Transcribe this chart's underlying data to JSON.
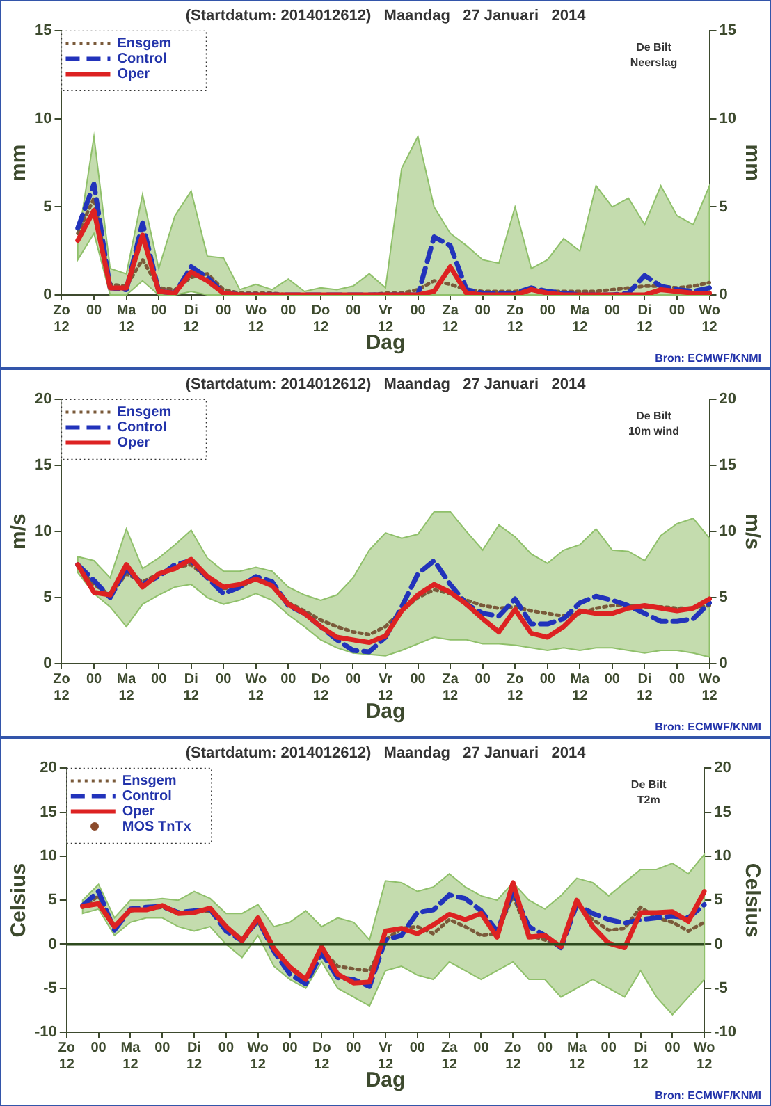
{
  "chart_data": [
    {
      "type": "line",
      "title": "(Startdatum: 2014012612)   Maandag   27 Januari   2014",
      "xlabel": "Dag",
      "ylabel": "mm",
      "y2label": "mm",
      "annotations": [
        "De Bilt",
        "Neerslag",
        "Bron: ECMWF/KNMI"
      ],
      "categories": [
        "Zo\n12",
        null,
        "00",
        null,
        "Ma\n12",
        null,
        "00",
        null,
        "Di\n12",
        null,
        "00",
        null,
        "Wo\n12",
        null,
        "00",
        null,
        "Do\n12",
        null,
        "00",
        null,
        "Vr\n12",
        null,
        "00",
        null,
        "Za\n12",
        null,
        "00",
        null,
        "Zo\n12",
        null,
        "00",
        null,
        "Ma\n12",
        null,
        "00",
        null,
        "Di\n12",
        null,
        "00",
        null,
        "Wo\n12"
      ],
      "ylim": [
        0,
        15
      ],
      "yticks": [
        0,
        5,
        10,
        15
      ],
      "y2lim": [
        0,
        15
      ],
      "y2ticks": [
        0,
        5,
        10,
        15
      ],
      "legend": "top left",
      "series": [
        {
          "name": "Ensgem",
          "color": "#7a5a3a",
          "line_style": "dotted",
          "values": [
            null,
            3.5,
            5.5,
            0.6,
            0.5,
            2.0,
            0.4,
            0.3,
            1.0,
            1.2,
            0.3,
            0.1,
            0.1,
            0.1,
            0,
            0,
            0,
            0,
            0,
            0,
            0.1,
            0.1,
            0.3,
            0.8,
            0.6,
            0.3,
            0.2,
            0.2,
            0.2,
            0.3,
            0.2,
            0.2,
            0.2,
            0.2,
            0.3,
            0.4,
            0.5,
            0.5,
            0.4,
            0.5,
            0.7
          ],
          "lower": [
            null,
            2.0,
            3.5,
            0,
            0,
            0.8,
            0,
            0,
            0.2,
            0,
            0,
            0,
            0,
            0,
            0,
            0,
            0,
            0,
            0,
            0,
            0,
            0,
            0,
            0,
            0,
            0,
            0,
            0,
            0,
            0,
            0,
            0,
            0,
            0,
            0,
            0,
            0,
            0,
            0,
            0,
            0
          ],
          "upper": [
            null,
            3,
            9,
            1.5,
            1.2,
            5.7,
            1.5,
            4.5,
            5.9,
            2.2,
            2.1,
            0.3,
            0.6,
            0.3,
            0.9,
            0.2,
            0.4,
            0.3,
            0.5,
            1.2,
            0.4,
            7.2,
            9.0,
            5,
            3.5,
            2.8,
            2,
            1.8,
            5,
            1.5,
            2,
            3.2,
            2.5,
            6.2,
            5.0,
            5.5,
            4.0,
            6.2,
            4.5,
            4.0,
            6.2
          ]
        },
        {
          "name": "Control",
          "color": "#2233bb",
          "line_style": "dashed",
          "values": [
            null,
            3.8,
            6.3,
            0.4,
            0.3,
            4.1,
            0.2,
            0.1,
            1.6,
            1.0,
            0.1,
            0,
            0,
            0,
            0,
            0,
            0,
            0,
            0,
            0,
            0,
            0,
            0,
            3.3,
            2.8,
            0.3,
            0.1,
            0.1,
            0.1,
            0.4,
            0.2,
            0.1,
            0,
            0,
            0,
            0.1,
            1.1,
            0.5,
            0.3,
            0.2,
            0.4
          ]
        },
        {
          "name": "Oper",
          "color": "#dd2222",
          "line_style": "solid",
          "values": [
            null,
            3.1,
            4.8,
            0.4,
            0.4,
            3.4,
            0.2,
            0.1,
            1.3,
            0.8,
            0.1,
            0,
            0,
            0,
            0,
            0,
            0,
            0,
            0,
            0,
            0,
            0,
            0,
            0.2,
            1.6,
            0.1,
            0,
            0,
            0,
            0.3,
            0.1,
            0,
            0,
            0,
            0,
            0,
            0,
            0.3,
            0.2,
            0.1,
            0.1
          ]
        }
      ]
    },
    {
      "type": "line",
      "title": "(Startdatum: 2014012612)   Maandag   27 Januari   2014",
      "xlabel": "Dag",
      "ylabel": "m/s",
      "y2label": "m/s",
      "annotations": [
        "De Bilt",
        "10m wind",
        "Bron: ECMWF/KNMI"
      ],
      "categories": [
        "Zo\n12",
        null,
        "00",
        null,
        "Ma\n12",
        null,
        "00",
        null,
        "Di\n12",
        null,
        "00",
        null,
        "Wo\n12",
        null,
        "00",
        null,
        "Do\n12",
        null,
        "00",
        null,
        "Vr\n12",
        null,
        "00",
        null,
        "Za\n12",
        null,
        "00",
        null,
        "Zo\n12",
        null,
        "00",
        null,
        "Ma\n12",
        null,
        "00",
        null,
        "Di\n12",
        null,
        "00",
        null,
        "Wo\n12"
      ],
      "ylim": [
        0,
        20
      ],
      "yticks": [
        0,
        5,
        10,
        15,
        20
      ],
      "y2lim": [
        0,
        20
      ],
      "y2ticks": [
        0,
        5,
        10,
        15,
        20
      ],
      "legend": "top left",
      "series": [
        {
          "name": "Ensgem",
          "color": "#7a5a3a",
          "line_style": "dotted",
          "values": [
            null,
            7.4,
            6.0,
            5.2,
            6.8,
            6.2,
            6.8,
            7.3,
            7.5,
            6.5,
            5.7,
            5.8,
            6.4,
            6.0,
            4.6,
            4.0,
            3.3,
            2.8,
            2.4,
            2.2,
            2.8,
            4.0,
            5.0,
            5.6,
            5.3,
            4.8,
            4.4,
            4.2,
            4.3,
            4.0,
            3.8,
            3.6,
            3.8,
            4.2,
            4.4,
            4.4,
            4.3,
            4.3,
            4.2,
            4.2,
            4.4
          ],
          "lower": [
            null,
            6.9,
            5.3,
            4.3,
            2.8,
            4.5,
            5.2,
            5.8,
            6.0,
            5.0,
            4.5,
            4.8,
            5.3,
            4.8,
            3.7,
            2.8,
            1.8,
            1.2,
            0.8,
            0.7,
            0.6,
            1.0,
            1.5,
            2.0,
            1.8,
            1.8,
            1.5,
            1.5,
            1.4,
            1.2,
            1.0,
            1.2,
            1.0,
            1.2,
            1.2,
            1.0,
            0.8,
            1.0,
            1.0,
            0.8,
            0.5
          ],
          "upper": [
            null,
            8.1,
            7.8,
            6.5,
            10.2,
            7.2,
            8.0,
            9.0,
            10.1,
            8.0,
            7.0,
            7.0,
            7.3,
            7.0,
            5.8,
            5.2,
            4.8,
            5.2,
            6.5,
            8.6,
            9.9,
            9.5,
            9.8,
            11.5,
            11.5,
            10.0,
            8.6,
            10.5,
            9.6,
            8.3,
            7.6,
            8.6,
            9.0,
            10.2,
            8.6,
            8.5,
            7.8,
            9.7,
            10.6,
            11.0,
            9.5
          ]
        },
        {
          "name": "Control",
          "color": "#2233bb",
          "line_style": "dashed",
          "values": [
            null,
            7.5,
            6.3,
            5.0,
            7.2,
            6.0,
            6.6,
            7.5,
            7.8,
            6.5,
            5.3,
            5.8,
            6.6,
            6.2,
            4.4,
            3.8,
            2.8,
            1.8,
            1.0,
            0.9,
            2.0,
            4.3,
            6.8,
            7.8,
            6.0,
            4.5,
            3.8,
            3.6,
            4.9,
            3.0,
            3.0,
            3.4,
            4.6,
            5.1,
            4.8,
            4.4,
            3.8,
            3.2,
            3.2,
            3.4,
            4.6
          ]
        },
        {
          "name": "Oper",
          "color": "#dd2222",
          "line_style": "solid",
          "values": [
            null,
            7.5,
            5.4,
            5.2,
            7.5,
            5.8,
            6.8,
            7.2,
            7.9,
            6.6,
            5.8,
            6.0,
            6.4,
            5.9,
            4.5,
            3.8,
            2.8,
            2.0,
            1.8,
            1.6,
            2.1,
            4.0,
            5.2,
            6.0,
            5.4,
            4.5,
            3.4,
            2.4,
            4.1,
            2.3,
            2.0,
            2.8,
            4.0,
            3.8,
            3.8,
            4.2,
            4.4,
            4.2,
            4.0,
            4.2,
            4.9
          ]
        }
      ]
    },
    {
      "type": "line",
      "title": "(Startdatum: 2014012612)   Maandag   27 Januari   2014",
      "xlabel": "Dag",
      "ylabel": "Celsius",
      "y2label": "Celsius",
      "annotations": [
        "MOS TnTx",
        "De Bilt",
        "T2m",
        "Bron: ECMWF/KNMI"
      ],
      "categories": [
        "Zo\n12",
        null,
        "00",
        null,
        "Ma\n12",
        null,
        "00",
        null,
        "Di\n12",
        null,
        "00",
        null,
        "Wo\n12",
        null,
        "00",
        null,
        "Do\n12",
        null,
        "00",
        null,
        "Vr\n12",
        null,
        "00",
        null,
        "Za\n12",
        null,
        "00",
        null,
        "Zo\n12",
        null,
        "00",
        null,
        "Ma\n12",
        null,
        "00",
        null,
        "Di\n12",
        null,
        "00",
        null,
        "Wo\n12"
      ],
      "ylim": [
        -10,
        20
      ],
      "yticks": [
        -10,
        -5,
        0,
        5,
        10,
        15,
        20
      ],
      "y2lim": [
        -10,
        20
      ],
      "y2ticks": [
        -10,
        -5,
        0,
        5,
        10,
        15,
        20
      ],
      "legend": "top left",
      "ref_lines": [
        {
          "axis": "y",
          "value": 0,
          "color": "#2e4a1e"
        }
      ],
      "series": [
        {
          "name": "Ensgem",
          "color": "#7a5a3a",
          "line_style": "dotted",
          "values": [
            null,
            4.2,
            5.5,
            2.0,
            3.8,
            4.0,
            4.2,
            3.6,
            3.8,
            3.8,
            2.0,
            0.6,
            2.5,
            -0.6,
            -2.8,
            -4.0,
            -0.6,
            -2.5,
            -2.8,
            -3.0,
            0.5,
            1.8,
            2.0,
            1.2,
            2.8,
            2.0,
            1.0,
            1.2,
            5.5,
            1.0,
            0.5,
            -0.3,
            4.5,
            2.8,
            1.6,
            1.8,
            4.2,
            3.0,
            2.5,
            1.5,
            2.5
          ],
          "lower": [
            null,
            3.5,
            4.0,
            1.0,
            2.5,
            3.0,
            3.0,
            2.0,
            1.5,
            2.0,
            0.0,
            -1.5,
            1.0,
            -2.5,
            -4.0,
            -5.0,
            -2.0,
            -5.0,
            -6.0,
            -7.0,
            -3.0,
            -2.5,
            -3.5,
            -4.0,
            -2.0,
            -3.0,
            -4.0,
            -3.0,
            -2.0,
            -4.0,
            -4.0,
            -6.0,
            -5.0,
            -4.0,
            -5.0,
            -6.0,
            -3.0,
            -6.0,
            -8.0,
            -6.0,
            -4.0
          ],
          "upper": [
            null,
            5.0,
            6.8,
            3.0,
            5.0,
            5.0,
            5.2,
            5.0,
            6.0,
            5.2,
            3.5,
            3.5,
            4.5,
            2.0,
            2.5,
            3.8,
            2.0,
            3.0,
            2.5,
            0.5,
            7.2,
            7.0,
            6.0,
            6.5,
            8.0,
            6.5,
            5.5,
            5.0,
            7.0,
            5.0,
            4.0,
            5.5,
            7.5,
            7.0,
            5.5,
            7.0,
            8.5,
            8.5,
            9.2,
            8.0,
            10.2
          ]
        },
        {
          "name": "Control",
          "color": "#2233bb",
          "line_style": "dashed",
          "values": [
            null,
            4.4,
            6.0,
            1.6,
            4.0,
            4.2,
            4.3,
            3.6,
            3.8,
            4.0,
            1.5,
            0.4,
            2.8,
            -0.8,
            -3.4,
            -4.5,
            -1.0,
            -3.8,
            -4.0,
            -4.8,
            0.5,
            1.0,
            3.6,
            3.9,
            5.6,
            5.2,
            3.8,
            1.5,
            6.0,
            2.0,
            1.0,
            -0.4,
            4.5,
            3.5,
            2.8,
            2.4,
            2.8,
            3.0,
            3.2,
            3.0,
            4.5
          ]
        },
        {
          "name": "Oper",
          "color": "#dd2222",
          "line_style": "solid",
          "values": [
            null,
            4.3,
            4.6,
            2.0,
            3.9,
            3.9,
            4.4,
            3.5,
            3.6,
            4.1,
            2.0,
            0.4,
            3.0,
            -0.5,
            -2.6,
            -4.0,
            -0.3,
            -3.4,
            -4.4,
            -4.3,
            1.5,
            1.8,
            1.2,
            2.2,
            3.4,
            2.8,
            3.5,
            0.8,
            7.0,
            0.8,
            1.0,
            -0.3,
            5.0,
            2.0,
            0.1,
            -0.4,
            3.6,
            3.6,
            3.7,
            2.6,
            6.0
          ]
        }
      ]
    }
  ]
}
